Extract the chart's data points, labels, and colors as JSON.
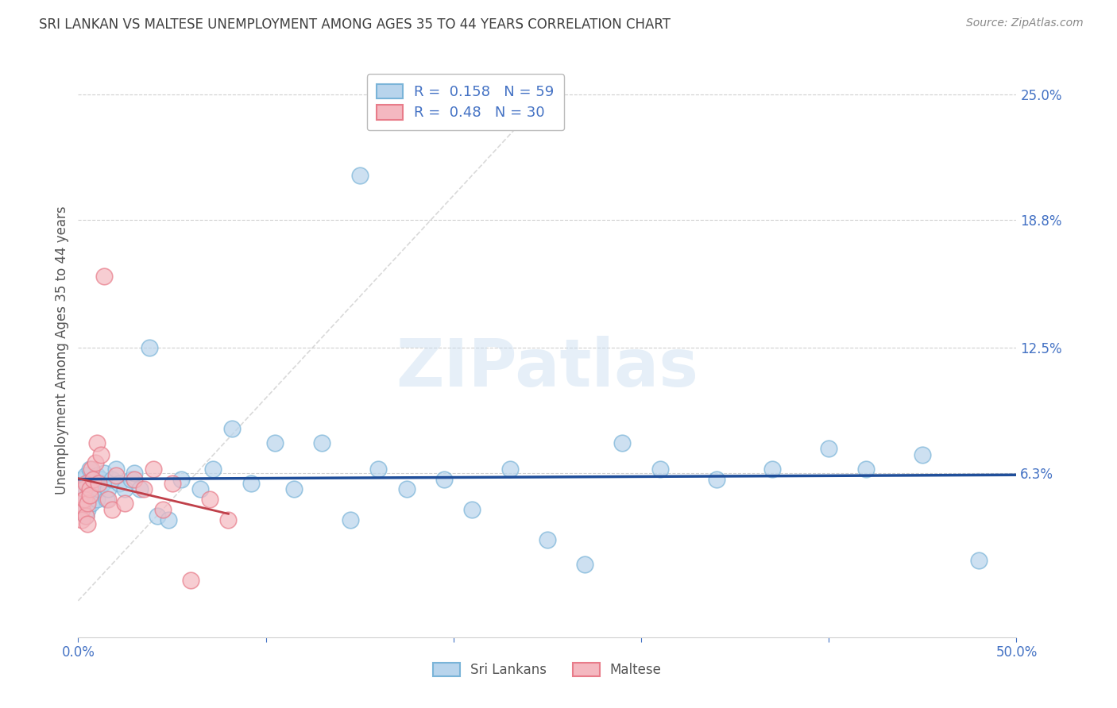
{
  "title": "SRI LANKAN VS MALTESE UNEMPLOYMENT AMONG AGES 35 TO 44 YEARS CORRELATION CHART",
  "source": "Source: ZipAtlas.com",
  "ylabel": "Unemployment Among Ages 35 to 44 years",
  "xlim": [
    0.0,
    0.5
  ],
  "ylim": [
    -0.018,
    0.265
  ],
  "ytick_vals": [
    0.0,
    0.063,
    0.125,
    0.188,
    0.25
  ],
  "ytick_labels": [
    "",
    "6.3%",
    "12.5%",
    "18.8%",
    "25.0%"
  ],
  "xtick_vals": [
    0.0,
    0.1,
    0.2,
    0.3,
    0.4,
    0.5
  ],
  "xtick_labels": [
    "0.0%",
    "",
    "",
    "",
    "",
    "50.0%"
  ],
  "sri_lankan_edge_color": "#7ab4d8",
  "sri_lankan_face_color": "#b8d4ec",
  "maltese_edge_color": "#e87c8a",
  "maltese_face_color": "#f4b8c0",
  "sri_lankan_R": 0.158,
  "sri_lankan_N": 59,
  "maltese_R": 0.48,
  "maltese_N": 30,
  "watermark_text": "ZIPatlas",
  "regression_blue_color": "#1f4e9a",
  "regression_pink_color": "#c0404a",
  "diagonal_color": "#d0d0d0",
  "background_color": "#ffffff",
  "grid_color": "#d0d0d0",
  "axis_color": "#4472c4",
  "title_color": "#404040",
  "sri_lankans_x": [
    0.001,
    0.002,
    0.002,
    0.003,
    0.003,
    0.004,
    0.004,
    0.005,
    0.005,
    0.006,
    0.006,
    0.007,
    0.007,
    0.008,
    0.008,
    0.009,
    0.01,
    0.01,
    0.011,
    0.012,
    0.013,
    0.014,
    0.015,
    0.016,
    0.018,
    0.02,
    0.022,
    0.025,
    0.028,
    0.03,
    0.033,
    0.038,
    0.042,
    0.048,
    0.055,
    0.065,
    0.072,
    0.082,
    0.092,
    0.105,
    0.115,
    0.13,
    0.145,
    0.16,
    0.175,
    0.195,
    0.21,
    0.23,
    0.25,
    0.27,
    0.29,
    0.31,
    0.34,
    0.37,
    0.4,
    0.42,
    0.45,
    0.48,
    0.15
  ],
  "sri_lankans_y": [
    0.057,
    0.06,
    0.05,
    0.055,
    0.048,
    0.062,
    0.042,
    0.058,
    0.045,
    0.065,
    0.052,
    0.055,
    0.048,
    0.06,
    0.053,
    0.058,
    0.062,
    0.05,
    0.055,
    0.06,
    0.058,
    0.063,
    0.05,
    0.055,
    0.06,
    0.065,
    0.058,
    0.055,
    0.06,
    0.063,
    0.055,
    0.125,
    0.042,
    0.04,
    0.06,
    0.055,
    0.065,
    0.085,
    0.058,
    0.078,
    0.055,
    0.078,
    0.04,
    0.065,
    0.055,
    0.06,
    0.045,
    0.065,
    0.03,
    0.018,
    0.078,
    0.065,
    0.06,
    0.065,
    0.075,
    0.065,
    0.072,
    0.02,
    0.21
  ],
  "maltese_x": [
    0.001,
    0.002,
    0.002,
    0.003,
    0.003,
    0.004,
    0.004,
    0.005,
    0.005,
    0.006,
    0.006,
    0.007,
    0.008,
    0.009,
    0.01,
    0.011,
    0.012,
    0.014,
    0.016,
    0.018,
    0.02,
    0.025,
    0.03,
    0.035,
    0.04,
    0.045,
    0.05,
    0.06,
    0.07,
    0.08
  ],
  "maltese_y": [
    0.048,
    0.045,
    0.04,
    0.055,
    0.05,
    0.042,
    0.058,
    0.048,
    0.038,
    0.055,
    0.052,
    0.065,
    0.06,
    0.068,
    0.078,
    0.058,
    0.072,
    0.16,
    0.05,
    0.045,
    0.062,
    0.048,
    0.06,
    0.055,
    0.065,
    0.045,
    0.058,
    0.01,
    0.05,
    0.04
  ]
}
